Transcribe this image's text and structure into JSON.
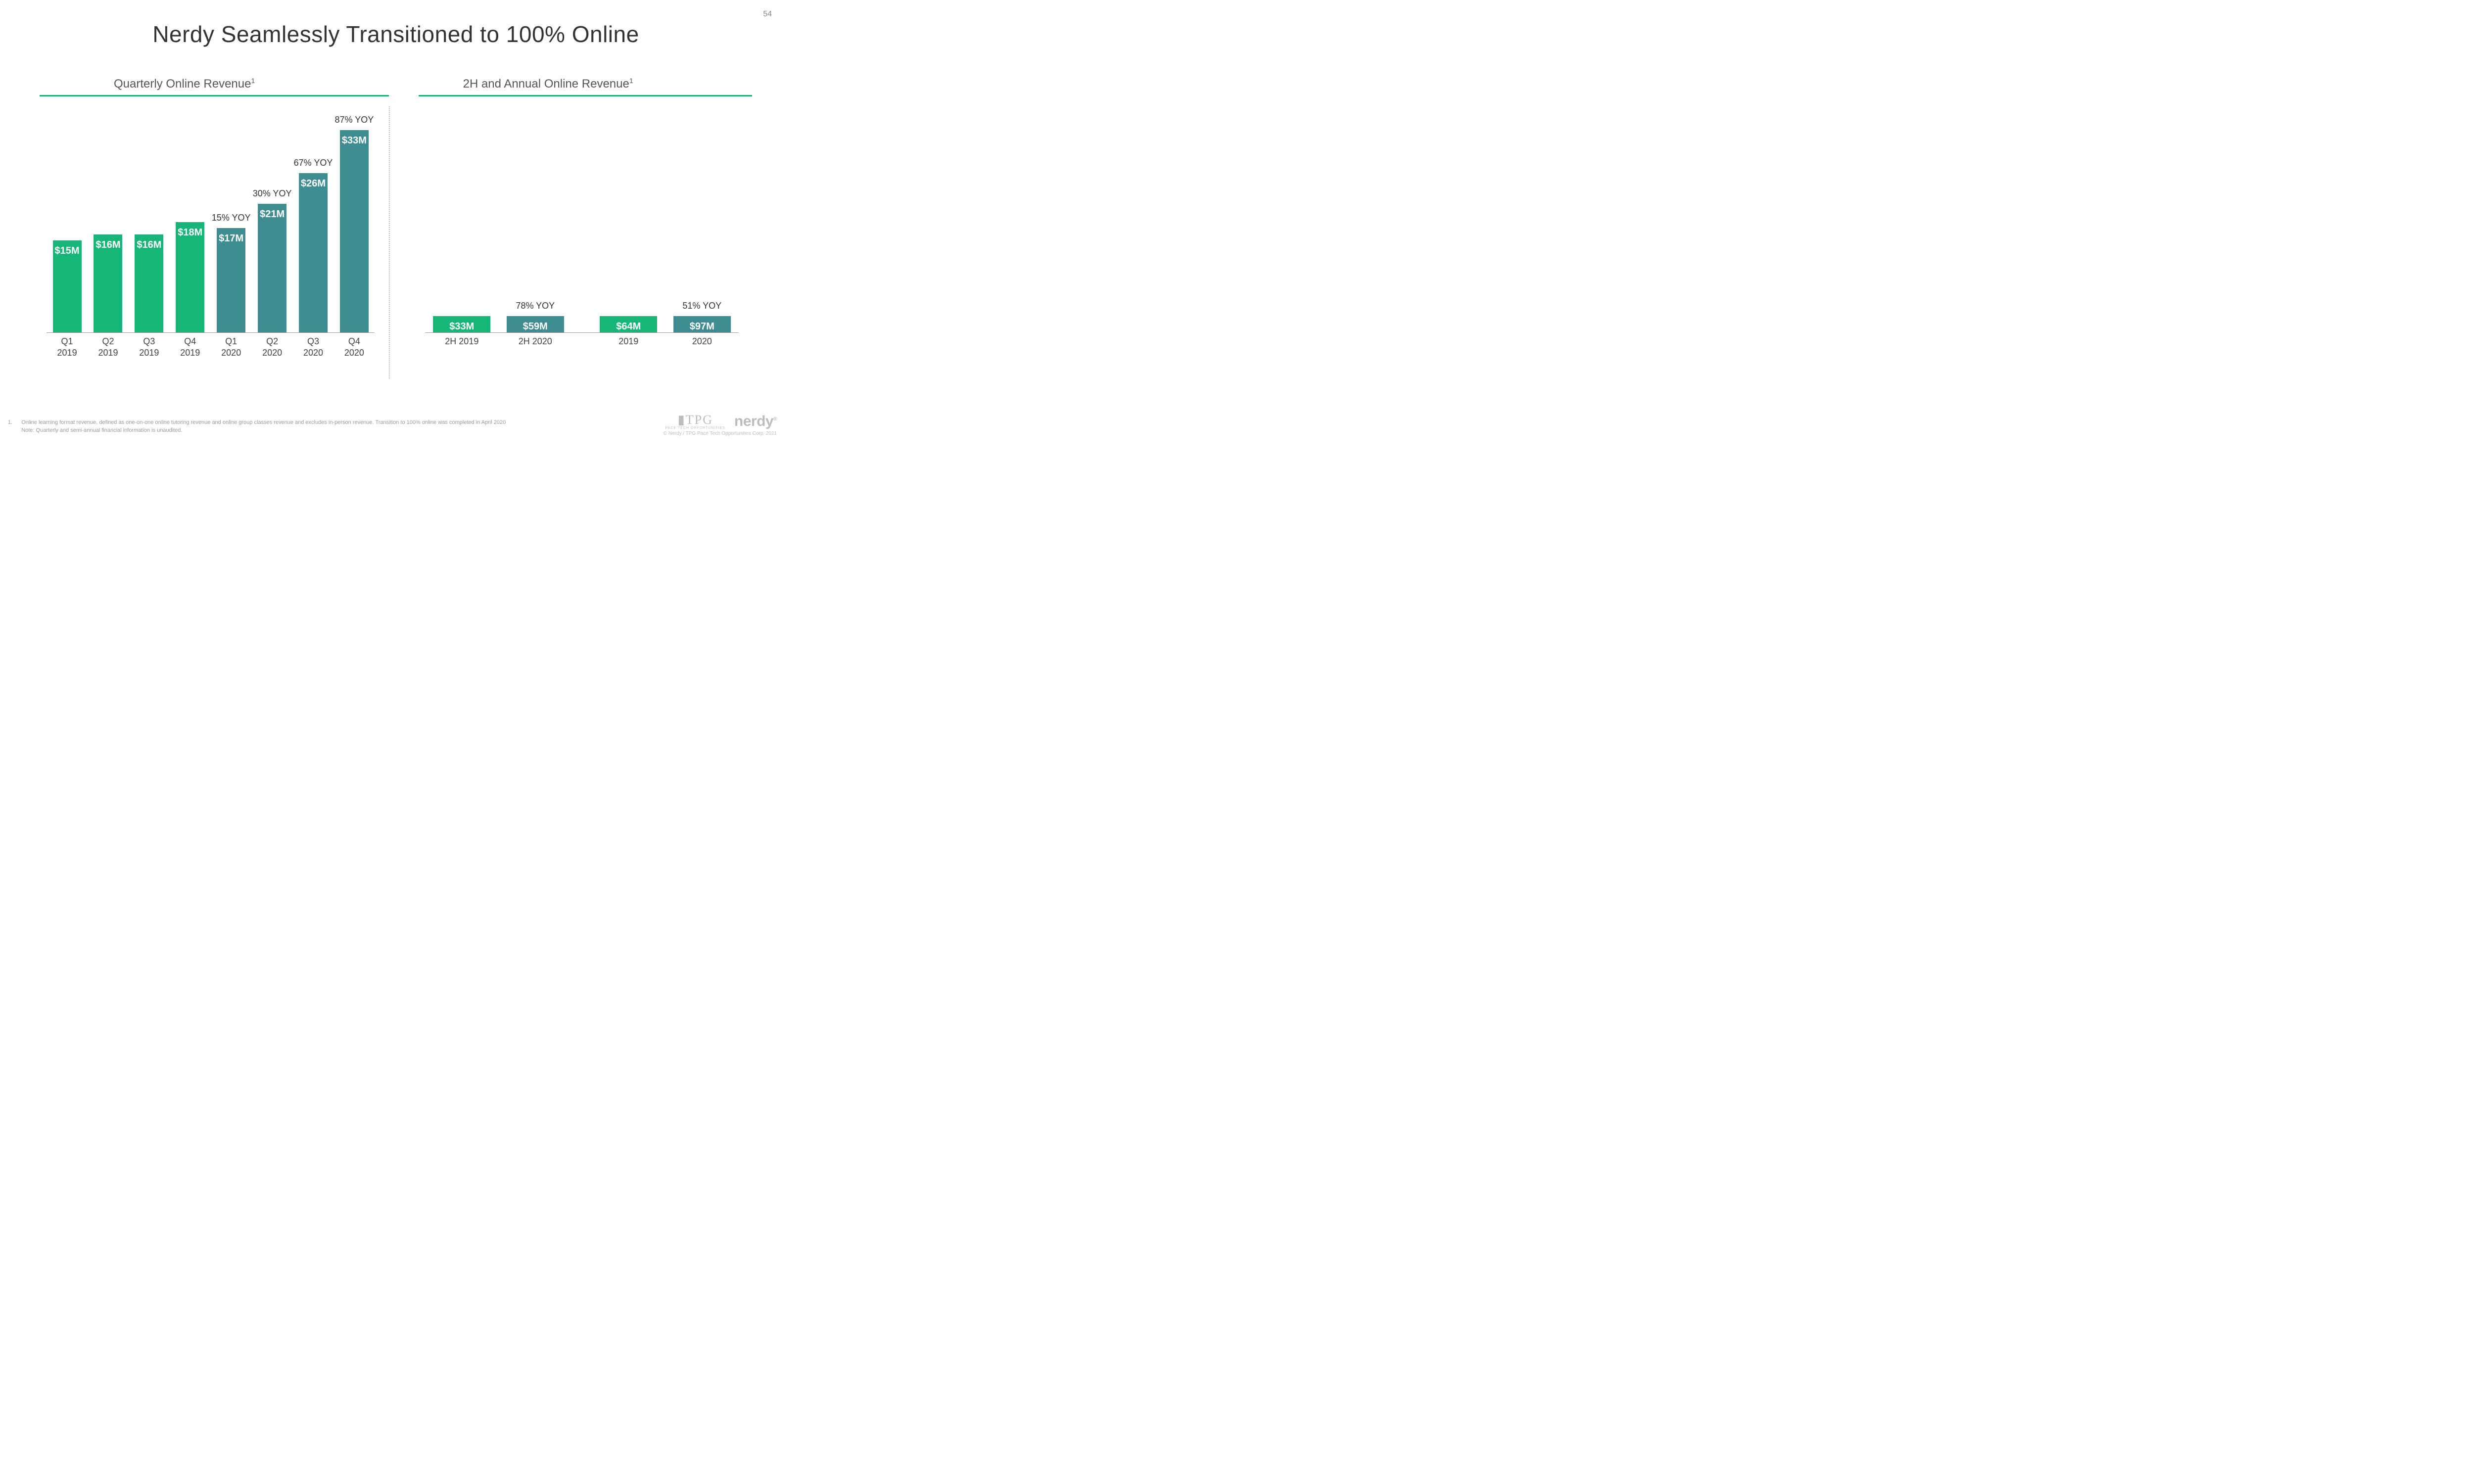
{
  "page_number": "54",
  "title": "Nerdy Seamlessly Transitioned to 100% Online",
  "colors": {
    "green": "#18b579",
    "teal": "#3f8d92",
    "underline": "#18b579",
    "text": "#333333",
    "muted": "#9a9a9a",
    "baseline": "#999999",
    "background": "#ffffff"
  },
  "chart_left": {
    "title": "Quarterly Online Revenue",
    "title_sup": "1",
    "type": "bar",
    "y_max": 38,
    "value_label_fontsize": 20,
    "yoy_fontsize": 18,
    "xlabel_fontsize": 18,
    "bars": [
      {
        "label_line1": "Q1",
        "label_line2": "2019",
        "value": 15,
        "value_label": "$15M",
        "color": "green",
        "yoy": ""
      },
      {
        "label_line1": "Q2",
        "label_line2": "2019",
        "value": 16,
        "value_label": "$16M",
        "color": "green",
        "yoy": ""
      },
      {
        "label_line1": "Q3",
        "label_line2": "2019",
        "value": 16,
        "value_label": "$16M",
        "color": "green",
        "yoy": ""
      },
      {
        "label_line1": "Q4",
        "label_line2": "2019",
        "value": 18,
        "value_label": "$18M",
        "color": "green",
        "yoy": ""
      },
      {
        "label_line1": "Q1",
        "label_line2": "2020",
        "value": 17,
        "value_label": "$17M",
        "color": "teal",
        "yoy": "15% YOY"
      },
      {
        "label_line1": "Q2",
        "label_line2": "2020",
        "value": 21,
        "value_label": "$21M",
        "color": "teal",
        "yoy": "30% YOY"
      },
      {
        "label_line1": "Q3",
        "label_line2": "2020",
        "value": 26,
        "value_label": "$26M",
        "color": "teal",
        "yoy": "67% YOY"
      },
      {
        "label_line1": "Q4",
        "label_line2": "2020",
        "value": 33,
        "value_label": "$33M",
        "color": "teal",
        "yoy": "87% YOY"
      }
    ]
  },
  "chart_right": {
    "title": "2H and Annual Online Revenue",
    "title_sup": "1",
    "type": "bar",
    "y_max": 112,
    "value_label_fontsize": 20,
    "yoy_fontsize": 18,
    "xlabel_fontsize": 18,
    "groups": [
      {
        "bars": [
          {
            "label": "2H 2019",
            "value": 33,
            "value_label": "$33M",
            "color": "green",
            "yoy": ""
          },
          {
            "label": "2H 2020",
            "value": 59,
            "value_label": "$59M",
            "color": "teal",
            "yoy": "78% YOY"
          }
        ]
      },
      {
        "bars": [
          {
            "label": "2019",
            "value": 64,
            "value_label": "$64M",
            "color": "green",
            "yoy": ""
          },
          {
            "label": "2020",
            "value": 97,
            "value_label": "$97M",
            "color": "teal",
            "yoy": "51% YOY"
          }
        ]
      }
    ]
  },
  "footnote": {
    "num": "1.",
    "line1": "Online learning format revenue, defined as one-on-one online tutoring revenue and online group classes revenue and excludes in-person revenue. Transition to 100% online was completed in April 2020",
    "line2": "Note: Quarterly and semi-annual financial information is unaudited."
  },
  "footer": {
    "logo_tpg": "TPG",
    "logo_tpg_sub": "PACE   TECH OPPORTUNITIES",
    "logo_nerdy": "nerdy",
    "copyright": "© Nerdy / TPG Pace Tech Opportunities Corp. 2021"
  }
}
